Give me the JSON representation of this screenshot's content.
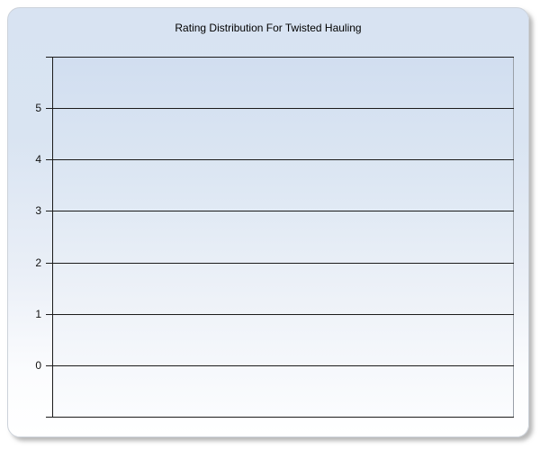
{
  "chart_data": {
    "type": "bar",
    "title": "Rating Distribution For Twisted Hauling",
    "categories": [],
    "series": [],
    "xlabel": "",
    "ylabel": "",
    "ylim": [
      -1,
      6
    ],
    "yticks": [
      0,
      1,
      2,
      3,
      4,
      5
    ],
    "grid": "horizontal",
    "legend": "none"
  },
  "colors": {
    "panel_gradient_top": "#d8e3f2",
    "panel_gradient_bottom": "#ffffff",
    "plot_gradient_top": "#d1def0",
    "plot_gradient_bottom": "#fbfcfe",
    "gridline": "#1b1b1b",
    "axis_line": "#1b1b1b",
    "plot_right_border": "#9aa0a8",
    "title_text": "#000000",
    "tick_label_text": "#111111"
  }
}
